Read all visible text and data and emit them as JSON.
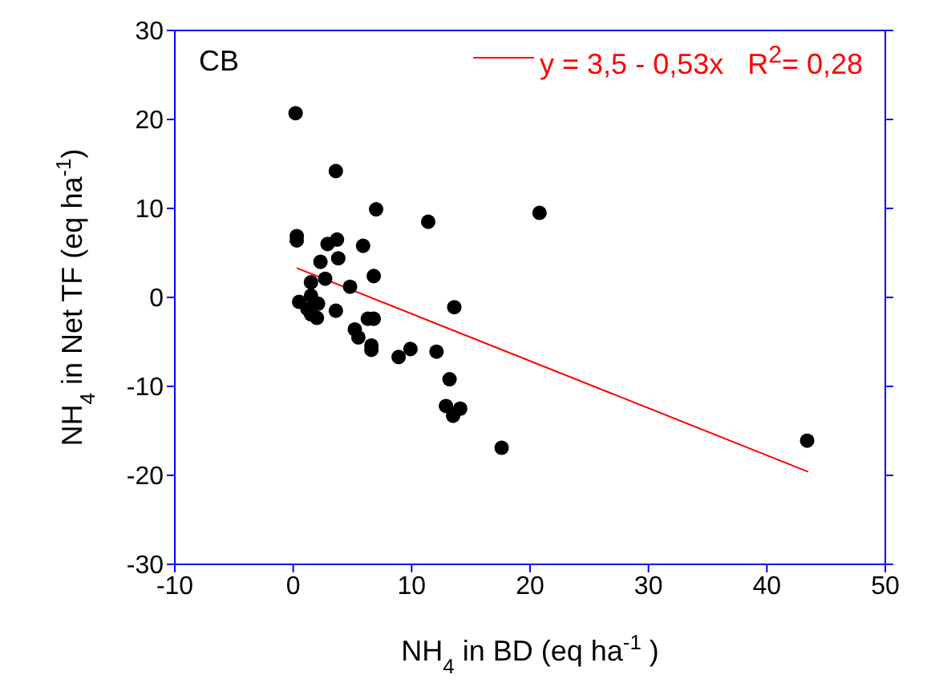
{
  "chart_data": {
    "type": "scatter",
    "xlabel": "NH$_{4}$ in BD   (eq ha$^{-1}$ )",
    "ylabel": "NH$_{4}$ in Net TF   (eq ha$^{-1}$)",
    "annotations": [
      "CB"
    ],
    "xlim": [
      -10,
      50
    ],
    "xticks": [
      -10,
      0,
      10,
      20,
      30,
      40,
      50
    ],
    "ylim": [
      -30,
      30
    ],
    "yticks": [
      -30,
      -20,
      -10,
      0,
      10,
      20,
      30
    ],
    "legend": "top right",
    "marker": "circle",
    "series": [
      {
        "color": "#000000",
        "x": [
          0.2,
          3.6,
          7.0,
          11.4,
          20.8,
          0.3,
          0.3,
          2.9,
          3.7,
          5.9,
          2.3,
          3.8,
          6.8,
          2.7,
          4.8,
          1.5,
          13.6,
          0.5,
          1.5,
          2.1,
          1.2,
          1.5,
          2.0,
          3.6,
          6.3,
          6.8,
          5.2,
          5.5,
          6.6,
          6.6,
          8.9,
          9.9,
          12.1,
          13.2,
          12.9,
          13.5,
          14.1,
          17.6,
          43.4
        ],
        "values": [
          20.7,
          14.2,
          9.9,
          8.5,
          9.5,
          6.9,
          6.4,
          6.0,
          6.5,
          5.8,
          4.0,
          4.4,
          2.4,
          2.1,
          1.2,
          1.7,
          -1.1,
          -0.5,
          0.2,
          -0.7,
          -1.3,
          -1.9,
          -2.3,
          -1.5,
          -2.4,
          -2.4,
          -3.6,
          -4.5,
          -5.4,
          -5.9,
          -6.7,
          -5.8,
          -6.1,
          -9.2,
          -12.2,
          -13.3,
          -12.5,
          -16.9,
          -16.1
        ]
      },
      {
        "type": "line",
        "name": "y = 3,5 - 0,53x   R$^{2}$= 0,28",
        "color": "#ff0000",
        "marker": "none",
        "line_style": "solid",
        "x": [
          0.3,
          43.5
        ],
        "values": [
          3.3,
          -19.6
        ]
      }
    ]
  }
}
